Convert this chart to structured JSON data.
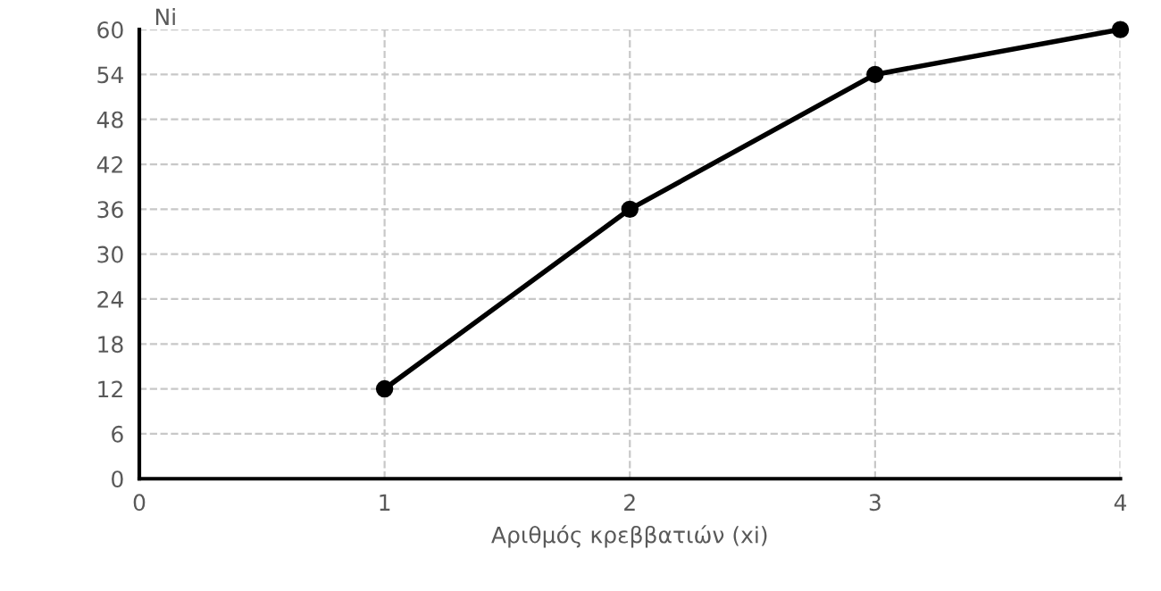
{
  "chart_data": {
    "type": "line",
    "xlabel": "Αριθμός κρεββατιών (xi)",
    "ylabel": "Ni",
    "x": [
      1,
      2,
      3,
      4
    ],
    "series": [
      {
        "color": "#000000",
        "values": [
          12,
          36,
          54,
          60
        ]
      }
    ],
    "xlim": [
      0,
      4
    ],
    "xticks": [
      0,
      1,
      2,
      3,
      4
    ],
    "ylim": [
      0,
      60
    ],
    "yticks": [
      0,
      6,
      12,
      18,
      24,
      30,
      36,
      42,
      48,
      54,
      60
    ],
    "grid": true,
    "marker": "circle",
    "line_style": "solid"
  }
}
